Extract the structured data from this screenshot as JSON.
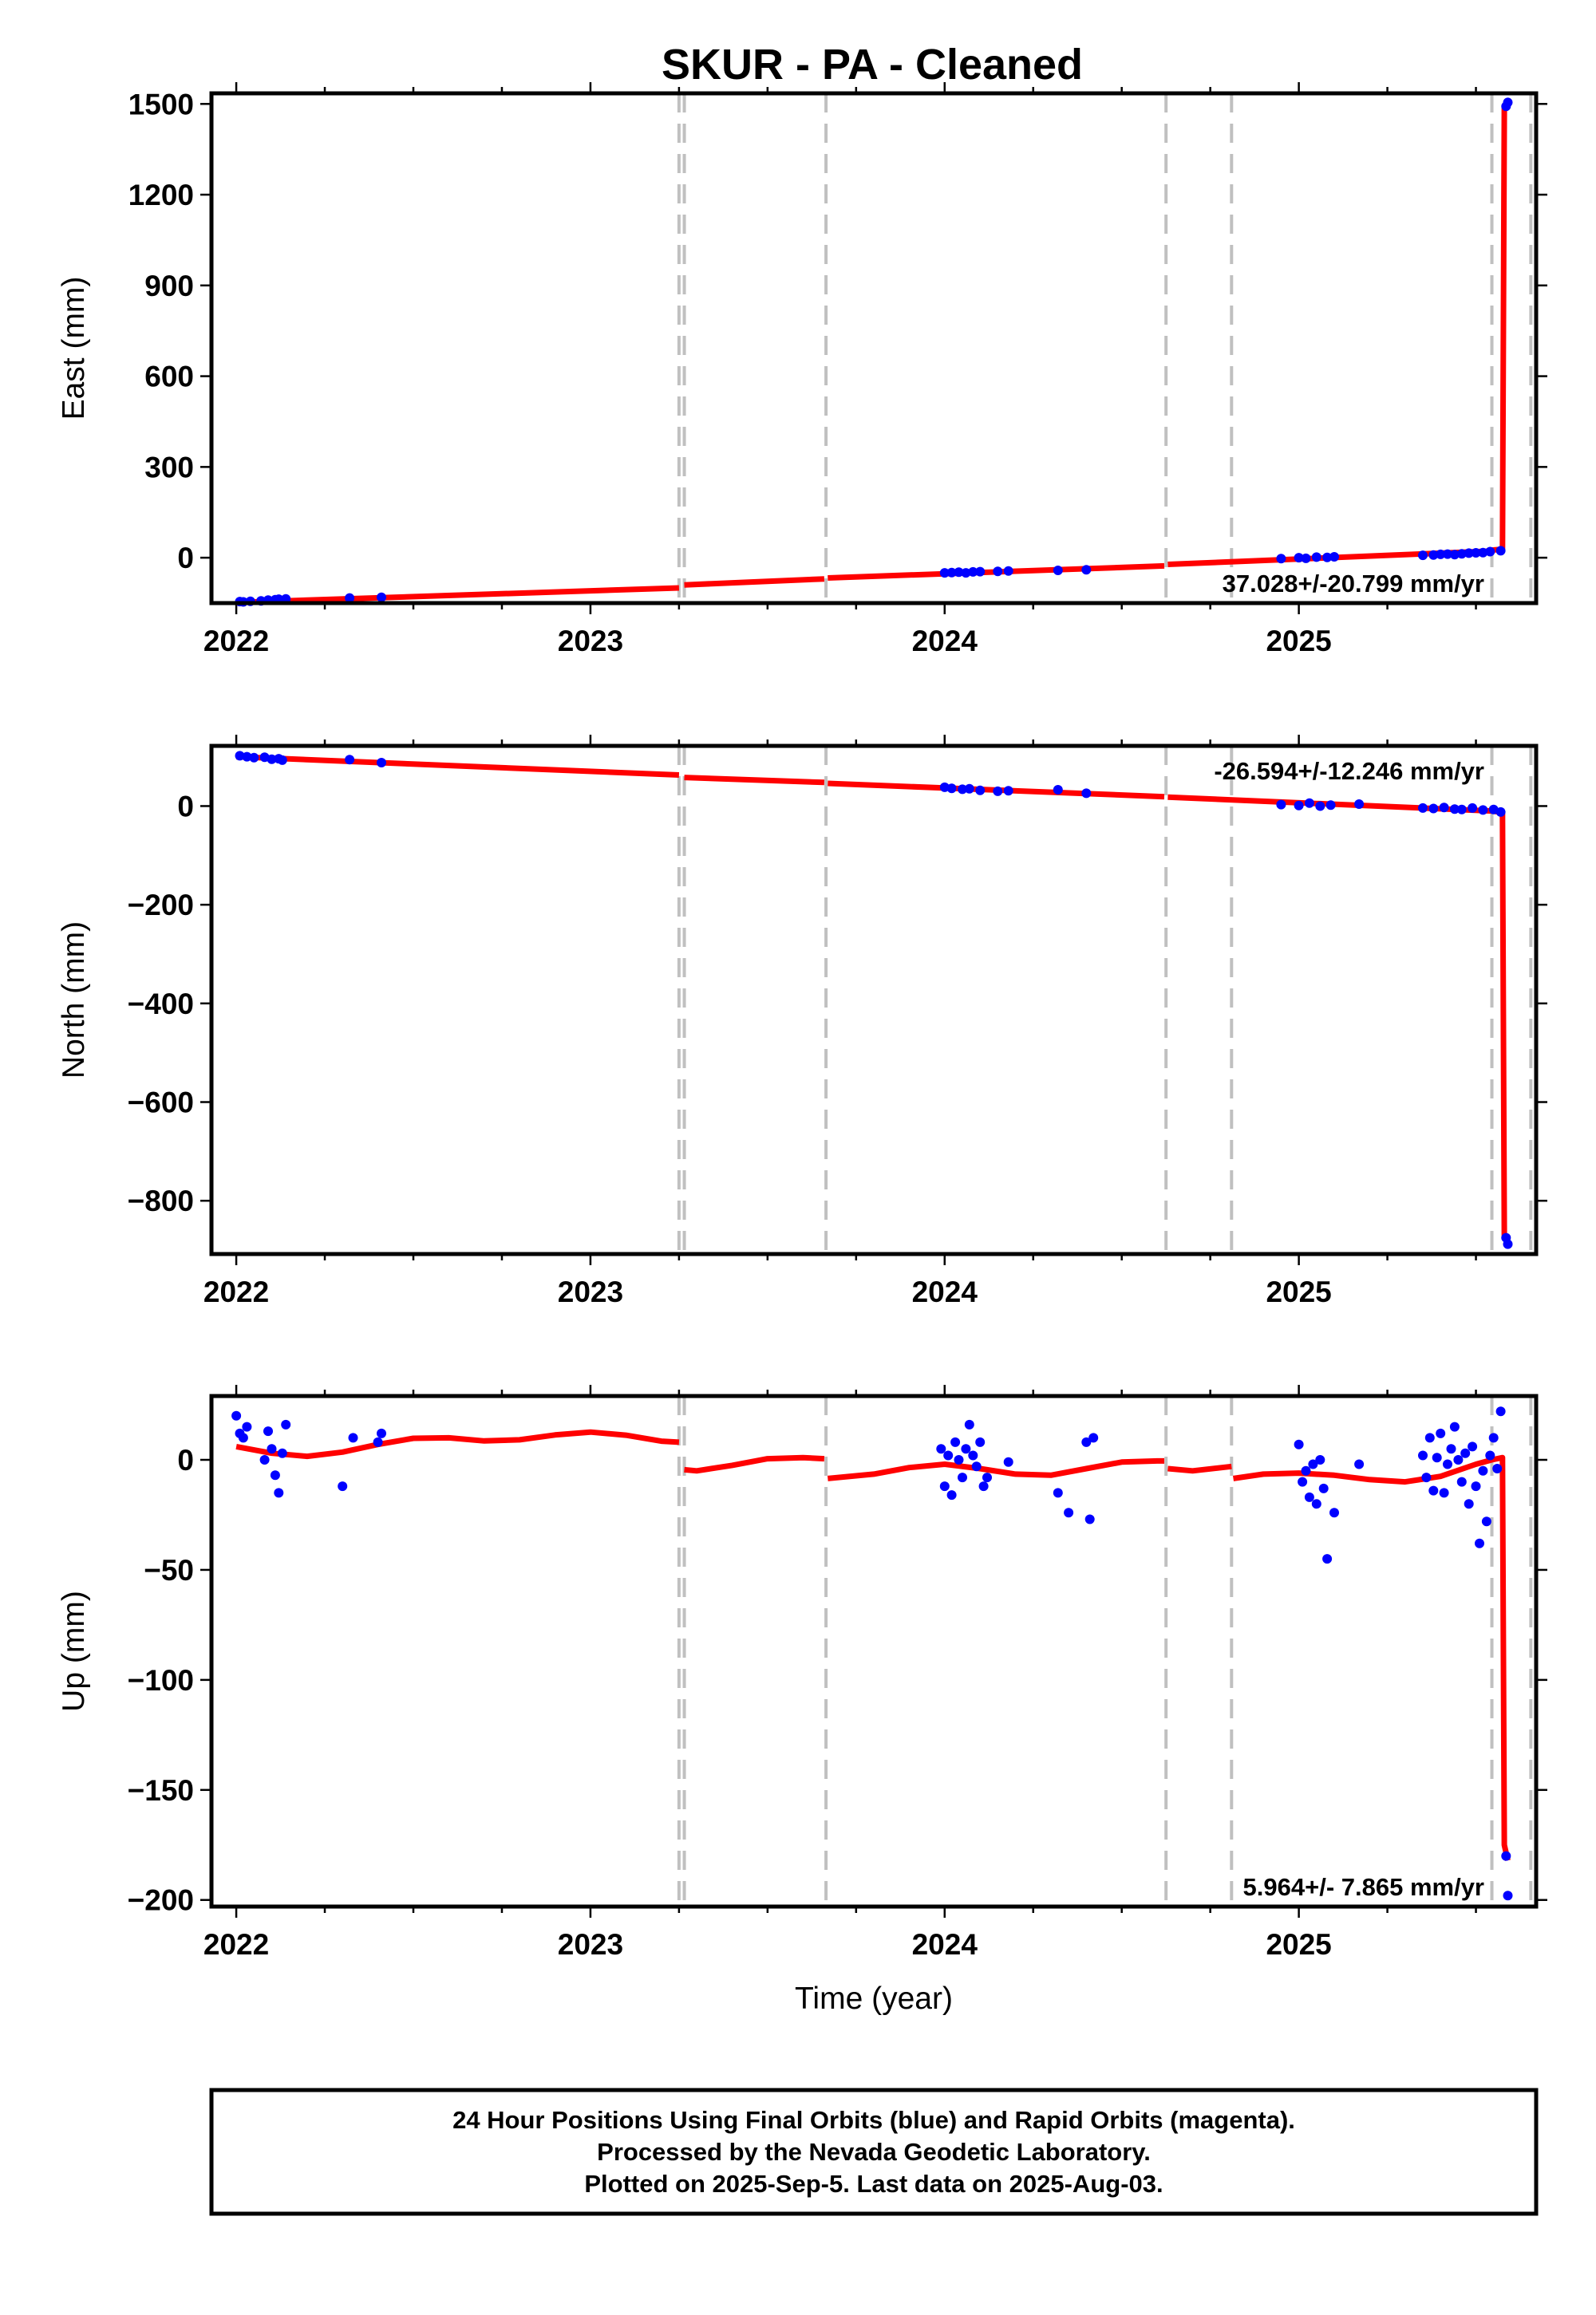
{
  "chart_data": [
    {
      "type": "scatter",
      "panel": "east",
      "title": "SKUR  - PA - Cleaned",
      "xlabel": "",
      "ylabel": "East (mm)",
      "xlim": [
        2021.93,
        2025.67
      ],
      "ylim": [
        -150,
        1535
      ],
      "yticks": [
        1500,
        1200,
        900,
        600,
        300,
        0
      ],
      "xticks": [
        2022,
        2023,
        2024,
        2025
      ],
      "rate_text": "37.028+/-20.799 mm/yr",
      "rate_position": "bottom-right",
      "grid": false,
      "colors": {
        "observations": "#0000ff",
        "model": "#ff0000",
        "breaks": "#c0c0c0"
      },
      "breaks": [
        2023.25,
        2023.265,
        2023.665,
        2024.625,
        2024.81,
        2025.545,
        2025.655
      ],
      "model_segments": [
        [
          [
            2022.0,
            -148
          ],
          [
            2023.25,
            -100
          ]
        ],
        [
          [
            2023.265,
            -90
          ],
          [
            2023.66,
            -70
          ]
        ],
        [
          [
            2023.67,
            -67
          ],
          [
            2024.62,
            -27
          ]
        ],
        [
          [
            2024.63,
            -22
          ],
          [
            2025.545,
            22
          ]
        ],
        [
          [
            2025.545,
            25
          ],
          [
            2025.575,
            28
          ],
          [
            2025.58,
            1490
          ],
          [
            2025.59,
            1502
          ]
        ]
      ],
      "series": [
        {
          "name": "Final Orbits",
          "x": [
            2022.01,
            2022.02,
            2022.04,
            2022.07,
            2022.09,
            2022.11,
            2022.12,
            2022.14,
            2022.32,
            2022.41,
            2024.0,
            2024.02,
            2024.04,
            2024.06,
            2024.08,
            2024.1,
            2024.15,
            2024.18,
            2024.32,
            2024.4,
            2024.95,
            2025.0,
            2025.02,
            2025.05,
            2025.08,
            2025.1,
            2025.35,
            2025.38,
            2025.4,
            2025.42,
            2025.44,
            2025.46,
            2025.48,
            2025.5,
            2025.52,
            2025.54,
            2025.57,
            2025.585,
            2025.59
          ],
          "y": [
            -145,
            -146,
            -144,
            -143,
            -140,
            -139,
            -137,
            -136,
            -133,
            -131,
            -50,
            -49,
            -48,
            -50,
            -47,
            -46,
            -45,
            -44,
            -42,
            -40,
            -3,
            0,
            -2,
            2,
            1,
            3,
            8,
            9,
            11,
            12,
            10,
            13,
            15,
            16,
            17,
            20,
            23,
            1492,
            1505
          ]
        }
      ]
    },
    {
      "type": "scatter",
      "panel": "north",
      "xlabel": "",
      "ylabel": "North (mm)",
      "xlim": [
        2021.93,
        2025.67
      ],
      "ylim": [
        -908,
        122
      ],
      "yticks": [
        0,
        -200,
        -400,
        -600,
        -800
      ],
      "xticks": [
        2022,
        2023,
        2024,
        2025
      ],
      "rate_text": "-26.594+/-12.246 mm/yr",
      "rate_position": "top-right",
      "grid": false,
      "colors": {
        "observations": "#0000ff",
        "model": "#ff0000",
        "breaks": "#c0c0c0"
      },
      "breaks": [
        2023.25,
        2023.265,
        2023.665,
        2024.625,
        2024.81,
        2025.545,
        2025.655
      ],
      "model_segments": [
        [
          [
            2022.0,
            100
          ],
          [
            2023.25,
            63
          ]
        ],
        [
          [
            2023.265,
            58
          ],
          [
            2023.66,
            48
          ]
        ],
        [
          [
            2023.67,
            46
          ],
          [
            2024.62,
            19
          ]
        ],
        [
          [
            2024.63,
            18
          ],
          [
            2025.545,
            -10
          ]
        ],
        [
          [
            2025.545,
            -10
          ],
          [
            2025.575,
            -13
          ],
          [
            2025.58,
            -870
          ],
          [
            2025.59,
            -884
          ]
        ]
      ],
      "series": [
        {
          "name": "Final Orbits",
          "x": [
            2022.01,
            2022.03,
            2022.05,
            2022.08,
            2022.1,
            2022.12,
            2022.13,
            2022.32,
            2022.41,
            2024.0,
            2024.02,
            2024.05,
            2024.07,
            2024.1,
            2024.15,
            2024.18,
            2024.32,
            2024.4,
            2024.95,
            2025.0,
            2025.03,
            2025.06,
            2025.09,
            2025.17,
            2025.35,
            2025.38,
            2025.41,
            2025.44,
            2025.46,
            2025.49,
            2025.52,
            2025.55,
            2025.57,
            2025.585,
            2025.59
          ],
          "y": [
            102,
            100,
            98,
            99,
            95,
            96,
            93,
            94,
            88,
            38,
            36,
            34,
            35,
            32,
            30,
            31,
            33,
            26,
            3,
            1,
            6,
            0,
            2,
            4,
            -4,
            -5,
            -3,
            -6,
            -7,
            -4,
            -8,
            -7,
            -12,
            -875,
            -888
          ]
        }
      ]
    },
    {
      "type": "scatter",
      "panel": "up",
      "xlabel": "Time (year)",
      "ylabel": "Up (mm)",
      "xlim": [
        2021.93,
        2025.67
      ],
      "ylim": [
        -203,
        29
      ],
      "yticks": [
        0,
        -50,
        -100,
        -150,
        -200
      ],
      "xticks": [
        2022,
        2023,
        2024,
        2025
      ],
      "rate_text": "5.964+/- 7.865 mm/yr",
      "rate_position": "bottom-right",
      "grid": false,
      "colors": {
        "observations": "#0000ff",
        "model": "#ff0000",
        "breaks": "#c0c0c0"
      },
      "breaks": [
        2023.25,
        2023.265,
        2023.665,
        2024.625,
        2024.81,
        2025.545,
        2025.655
      ],
      "model_segments": [
        [
          [
            2022.0,
            6.0
          ],
          [
            2022.1,
            3.0
          ],
          [
            2022.2,
            1.6
          ],
          [
            2022.3,
            3.5
          ],
          [
            2022.4,
            7.0
          ],
          [
            2022.5,
            9.8
          ],
          [
            2022.6,
            10.0
          ],
          [
            2022.7,
            8.6
          ],
          [
            2022.8,
            9.1
          ],
          [
            2022.9,
            11.3
          ],
          [
            2023.0,
            12.6
          ],
          [
            2023.1,
            11.2
          ],
          [
            2023.2,
            8.5
          ],
          [
            2023.25,
            8.0
          ]
        ],
        [
          [
            2023.265,
            -4.5
          ],
          [
            2023.3,
            -5.0
          ],
          [
            2023.4,
            -2.5
          ],
          [
            2023.5,
            0.5
          ],
          [
            2023.6,
            1.0
          ],
          [
            2023.66,
            0.5
          ]
        ],
        [
          [
            2023.67,
            -8.5
          ],
          [
            2023.8,
            -6.5
          ],
          [
            2023.9,
            -3.5
          ],
          [
            2024.0,
            -2.0
          ],
          [
            2024.1,
            -4.0
          ],
          [
            2024.2,
            -6.5
          ],
          [
            2024.3,
            -7.0
          ],
          [
            2024.4,
            -4.0
          ],
          [
            2024.5,
            -1.0
          ],
          [
            2024.6,
            -0.5
          ],
          [
            2024.62,
            -0.5
          ]
        ],
        [
          [
            2024.63,
            -4.0
          ],
          [
            2024.7,
            -5.0
          ],
          [
            2024.81,
            -3.0
          ]
        ],
        [
          [
            2024.815,
            -8.5
          ],
          [
            2024.9,
            -6.5
          ],
          [
            2025.0,
            -6.0
          ],
          [
            2025.1,
            -7.0
          ],
          [
            2025.2,
            -9.0
          ],
          [
            2025.3,
            -10.0
          ],
          [
            2025.4,
            -7.5
          ],
          [
            2025.5,
            -2.0
          ],
          [
            2025.545,
            0.0
          ],
          [
            2025.575,
            1.0
          ],
          [
            2025.58,
            -175
          ],
          [
            2025.59,
            -182
          ]
        ]
      ],
      "series": [
        {
          "name": "Final Orbits",
          "x": [
            2022.0,
            2022.01,
            2022.02,
            2022.03,
            2022.08,
            2022.09,
            2022.1,
            2022.11,
            2022.12,
            2022.13,
            2022.14,
            2022.3,
            2022.33,
            2022.4,
            2022.41,
            2023.99,
            2024.0,
            2024.01,
            2024.02,
            2024.03,
            2024.04,
            2024.05,
            2024.06,
            2024.07,
            2024.08,
            2024.09,
            2024.1,
            2024.11,
            2024.12,
            2024.18,
            2024.32,
            2024.35,
            2024.4,
            2024.41,
            2024.42,
            2025.0,
            2025.01,
            2025.02,
            2025.03,
            2025.04,
            2025.05,
            2025.06,
            2025.07,
            2025.08,
            2025.1,
            2025.17,
            2025.35,
            2025.36,
            2025.37,
            2025.38,
            2025.39,
            2025.4,
            2025.41,
            2025.42,
            2025.43,
            2025.44,
            2025.45,
            2025.46,
            2025.47,
            2025.48,
            2025.49,
            2025.5,
            2025.51,
            2025.52,
            2025.53,
            2025.54,
            2025.55,
            2025.56,
            2025.57,
            2025.585,
            2025.59
          ],
          "y": [
            20,
            12,
            10,
            15,
            0,
            13,
            5,
            -7,
            -15,
            3,
            16,
            -12,
            10,
            8,
            12,
            5,
            -12,
            2,
            -16,
            8,
            0,
            -8,
            5,
            16,
            2,
            -3,
            8,
            -12,
            -8,
            -1,
            -15,
            -24,
            8,
            -27,
            10,
            7,
            -10,
            -5,
            -17,
            -2,
            -20,
            0,
            -13,
            -45,
            -24,
            -2,
            2,
            -8,
            10,
            -14,
            1,
            12,
            -15,
            -2,
            5,
            15,
            0,
            -10,
            3,
            -20,
            6,
            -12,
            -38,
            -5,
            -28,
            2,
            10,
            -4,
            22,
            -180,
            -198
          ]
        }
      ]
    }
  ],
  "footer": {
    "line1": "24 Hour Positions Using Final Orbits (blue) and Rapid Orbits (magenta).",
    "line2": "Processed by the Nevada Geodetic Laboratory.",
    "line3": "Plotted on 2025-Sep-5. Last data on 2025-Aug-03."
  }
}
